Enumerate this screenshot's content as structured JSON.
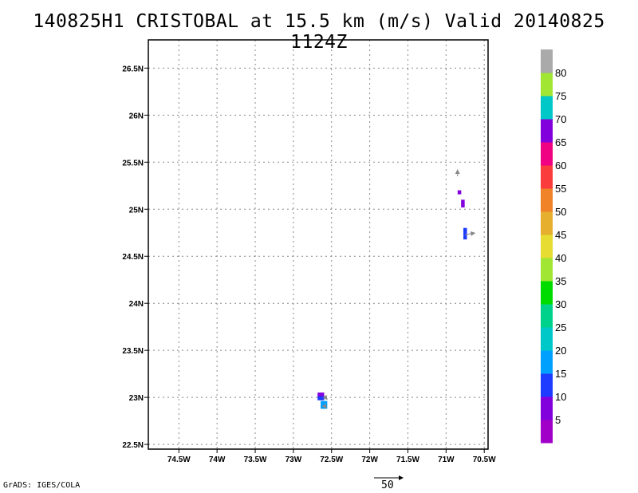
{
  "title": "140825H1 CRISTOBAL at 15.5 km (m/s) Valid 20140825 1124Z",
  "credit": "GrADS: IGES/COLA",
  "reference_vector_label": "50",
  "map": {
    "lon_range": [
      -74.9,
      -70.45
    ],
    "lat_range": [
      22.45,
      26.8
    ],
    "lon_ticks": [
      -74.5,
      -74,
      -73.5,
      -73,
      -72.5,
      -72,
      -71.5,
      -71,
      -70.5
    ],
    "lon_labels": [
      "74.5W",
      "74W",
      "73.5W",
      "73W",
      "72.5W",
      "72W",
      "71.5W",
      "71W",
      "70.5W"
    ],
    "lat_ticks": [
      22.5,
      23,
      23.5,
      24,
      24.5,
      25,
      25.5,
      26,
      26.5
    ],
    "lat_labels": [
      "22.5N",
      "23N",
      "23.5N",
      "24N",
      "24.5N",
      "25N",
      "25.5N",
      "26N",
      "26.5N"
    ]
  },
  "colorbar": {
    "colors": [
      "#a000c8",
      "#8200dc",
      "#1e3cff",
      "#00a0ff",
      "#00c8c8",
      "#00d28c",
      "#00dc00",
      "#a0e632",
      "#e6dc32",
      "#e6af2d",
      "#f08228",
      "#fa3c3c",
      "#f00082",
      "#8200dc",
      "#00c8c8",
      "#a0e632",
      "#aaaaaa"
    ],
    "labels": [
      "5",
      "10",
      "15",
      "20",
      "25",
      "30",
      "35",
      "40",
      "45",
      "50",
      "55",
      "60",
      "65",
      "70",
      "75",
      "80"
    ]
  },
  "cells": [
    {
      "lon": -70.825,
      "lat": 25.18,
      "color": "#8200dc"
    },
    {
      "lon": -70.78,
      "lat": 25.08,
      "color": "#8200dc"
    },
    {
      "lon": -70.78,
      "lat": 25.04,
      "color": "#8200dc"
    },
    {
      "lon": -70.75,
      "lat": 24.78,
      "color": "#1e3cff"
    },
    {
      "lon": -70.75,
      "lat": 24.74,
      "color": "#1e3cff"
    },
    {
      "lon": -70.75,
      "lat": 24.7,
      "color": "#1e3cff"
    },
    {
      "lon": -72.66,
      "lat": 23.03,
      "color": "#8200dc"
    },
    {
      "lon": -72.62,
      "lat": 23.03,
      "color": "#8200dc"
    },
    {
      "lon": -72.66,
      "lat": 22.99,
      "color": "#1e3cff"
    },
    {
      "lon": -72.62,
      "lat": 22.99,
      "color": "#1e3cff"
    },
    {
      "lon": -72.62,
      "lat": 22.94,
      "color": "#00a0ff"
    },
    {
      "lon": -72.58,
      "lat": 22.94,
      "color": "#00a0ff"
    },
    {
      "lon": -72.58,
      "lat": 22.9,
      "color": "#00a0ff"
    },
    {
      "lon": -72.62,
      "lat": 22.9,
      "color": "#00a0ff"
    }
  ],
  "vectors": [
    {
      "lon": -70.85,
      "lat": 25.35,
      "u": 0,
      "v": 8
    },
    {
      "lon": -70.75,
      "lat": 24.73,
      "u": 12,
      "v": 2
    },
    {
      "lon": -72.6,
      "lat": 23.02,
      "u": 4,
      "v": -5
    },
    {
      "lon": -72.6,
      "lat": 22.92,
      "u": 3,
      "v": -4
    }
  ]
}
